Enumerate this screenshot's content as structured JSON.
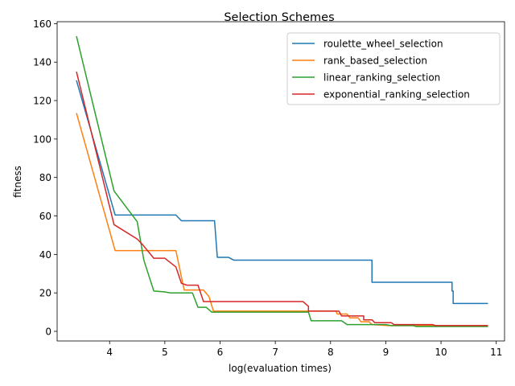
{
  "chart_data": {
    "type": "line",
    "title": "Selection Schemes",
    "xlabel": "log(evaluation times)",
    "ylabel": "fitness",
    "xlim": [
      3.05,
      11.15
    ],
    "ylim": [
      -5,
      161
    ],
    "xticks": [
      4,
      5,
      6,
      7,
      8,
      9,
      10,
      11
    ],
    "yticks": [
      0,
      20,
      40,
      60,
      80,
      100,
      120,
      140,
      160
    ],
    "grid": false,
    "legend_position": "top-right",
    "series": [
      {
        "name": "roulette_wheel_selection",
        "color": "#1f77b4",
        "points": [
          [
            3.4,
            130.5
          ],
          [
            4.1,
            60.5
          ],
          [
            4.5,
            60.5
          ],
          [
            5.2,
            60.5
          ],
          [
            5.3,
            57.5
          ],
          [
            5.9,
            57.5
          ],
          [
            5.95,
            38.5
          ],
          [
            6.15,
            38.5
          ],
          [
            6.25,
            37
          ],
          [
            8.75,
            37
          ],
          [
            8.75,
            25.5
          ],
          [
            10.2,
            25.5
          ],
          [
            10.2,
            21
          ],
          [
            10.22,
            21
          ],
          [
            10.22,
            14.5
          ],
          [
            10.85,
            14.5
          ]
        ]
      },
      {
        "name": "rank_based_selection",
        "color": "#ff7f0e",
        "points": [
          [
            3.4,
            113.5
          ],
          [
            4.1,
            42
          ],
          [
            5.2,
            42
          ],
          [
            5.35,
            21.5
          ],
          [
            5.7,
            21.5
          ],
          [
            5.8,
            18
          ],
          [
            5.88,
            10.5
          ],
          [
            8.1,
            10.5
          ],
          [
            8.12,
            9
          ],
          [
            8.3,
            9
          ],
          [
            8.35,
            7
          ],
          [
            8.5,
            7
          ],
          [
            8.55,
            5
          ],
          [
            8.7,
            5
          ],
          [
            8.75,
            3.5
          ],
          [
            9.05,
            3
          ],
          [
            10.85,
            3
          ]
        ]
      },
      {
        "name": "linear_ranking_selection",
        "color": "#2ca02c",
        "points": [
          [
            3.4,
            153.5
          ],
          [
            4.08,
            73
          ],
          [
            4.5,
            57
          ],
          [
            4.62,
            37
          ],
          [
            4.8,
            21
          ],
          [
            5.0,
            20.5
          ],
          [
            5.1,
            20
          ],
          [
            5.5,
            20
          ],
          [
            5.6,
            12.5
          ],
          [
            5.75,
            12.5
          ],
          [
            5.85,
            10
          ],
          [
            7.6,
            10
          ],
          [
            7.65,
            5.5
          ],
          [
            8.2,
            5.5
          ],
          [
            8.3,
            3.5
          ],
          [
            9.0,
            3.5
          ],
          [
            9.1,
            3
          ],
          [
            9.5,
            3
          ],
          [
            9.55,
            2.5
          ],
          [
            10.85,
            2.5
          ]
        ]
      },
      {
        "name": "exponential_ranking_selection",
        "color": "#d62728",
        "points": [
          [
            3.4,
            135
          ],
          [
            4.08,
            55.5
          ],
          [
            4.5,
            48
          ],
          [
            4.6,
            45
          ],
          [
            4.8,
            38
          ],
          [
            5.0,
            38
          ],
          [
            5.2,
            33.5
          ],
          [
            5.3,
            25
          ],
          [
            5.4,
            24
          ],
          [
            5.6,
            24
          ],
          [
            5.7,
            15.5
          ],
          [
            7.5,
            15.5
          ],
          [
            7.6,
            13
          ],
          [
            7.6,
            10.5
          ],
          [
            8.15,
            10.5
          ],
          [
            8.2,
            8
          ],
          [
            8.6,
            8
          ],
          [
            8.6,
            6
          ],
          [
            8.75,
            6
          ],
          [
            8.8,
            4.5
          ],
          [
            9.1,
            4.5
          ],
          [
            9.15,
            3.5
          ],
          [
            9.85,
            3.5
          ],
          [
            9.9,
            3
          ],
          [
            10.85,
            3
          ]
        ]
      }
    ]
  }
}
